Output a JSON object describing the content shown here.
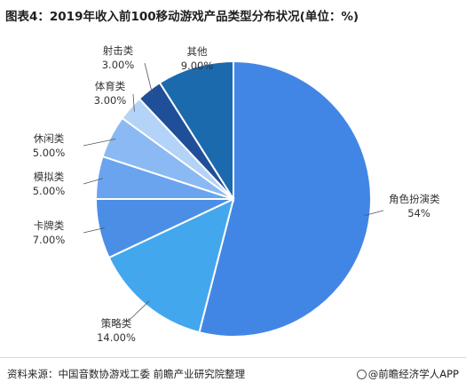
{
  "header": {
    "title": "图表4：2019年收入前100移动游戏产品类型分布状况(单位：%)"
  },
  "footer": {
    "source": "资料来源：中国音数协游戏工委 前瞻产业研究院整理",
    "brand": "@前瞻经济学人APP"
  },
  "chart_data": {
    "type": "pie",
    "title": "图表4：2019年收入前100移动游戏产品类型分布状况(单位：%)",
    "categories": [
      "角色扮演类",
      "策略类",
      "卡牌类",
      "模拟类",
      "休闲类",
      "体育类",
      "射击类",
      "其他"
    ],
    "values": [
      54,
      14,
      7,
      5,
      5,
      3,
      3,
      9
    ],
    "value_labels": [
      "54%",
      "14.00%",
      "7.00%",
      "5.00%",
      "5.00%",
      "3.00%",
      "3.00%",
      "9.00%"
    ],
    "colors": [
      "#4286e5",
      "#43a7ee",
      "#4b8ee6",
      "#6aa4ef",
      "#8ab9f3",
      "#b3d3f8",
      "#1f4f98",
      "#1b6aad"
    ],
    "start_angle": "12 o'clock",
    "direction": "clockwise",
    "legend": "none"
  }
}
